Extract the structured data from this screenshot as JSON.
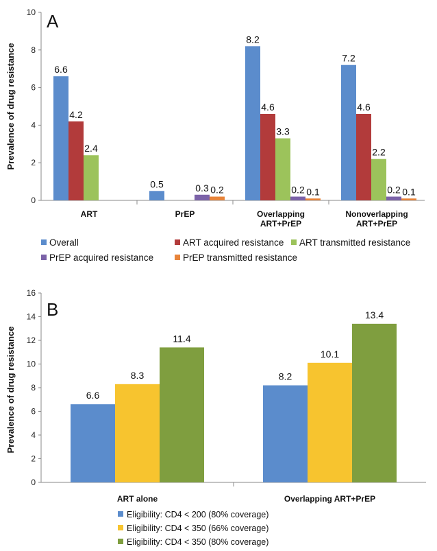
{
  "chart_data": [
    {
      "type": "bar",
      "panel_label": "A",
      "ylabel": "Prevalence of drug resistance",
      "xlabel": "",
      "ylim": [
        0,
        10
      ],
      "yticks": [
        0,
        2,
        4,
        6,
        8,
        10
      ],
      "categories": [
        [
          "ART"
        ],
        [
          "PrEP"
        ],
        [
          "Overlapping",
          "ART+PrEP"
        ],
        [
          "Nonoverlapping",
          "ART+PrEP"
        ]
      ],
      "series": [
        {
          "name": "Overall",
          "color": "#5b8ccc",
          "values": [
            6.6,
            0.5,
            8.2,
            7.2
          ],
          "labels": [
            "6.6",
            "0.5",
            "8.2",
            "7.2"
          ]
        },
        {
          "name": "ART acquired resistance",
          "color": "#b23b3b",
          "values": [
            4.2,
            null,
            4.6,
            4.6
          ],
          "labels": [
            "4.2",
            "",
            "4.6",
            "4.6"
          ]
        },
        {
          "name": "ART transmitted resistance",
          "color": "#9cc35b",
          "values": [
            2.4,
            null,
            3.3,
            2.2
          ],
          "labels": [
            "2.4",
            "",
            "3.3",
            "2.2"
          ]
        },
        {
          "name": "PrEP acquired resistance",
          "color": "#7b62a8",
          "values": [
            null,
            0.3,
            0.2,
            0.2
          ],
          "labels": [
            "",
            "0.3",
            "0.2",
            "0.2"
          ]
        },
        {
          "name": "PrEP transmitted resistance",
          "color": "#e8843a",
          "values": [
            null,
            0.2,
            0.1,
            0.1
          ],
          "labels": [
            "",
            "0.2",
            "0.1",
            "0.1"
          ]
        }
      ],
      "grid": false,
      "legend_position": "bottom"
    },
    {
      "type": "bar",
      "panel_label": "B",
      "ylabel": "Prevalence of drug resistance",
      "xlabel": "",
      "ylim": [
        0,
        16
      ],
      "yticks": [
        0,
        2,
        4,
        6,
        8,
        10,
        12,
        14,
        16
      ],
      "categories": [
        [
          "ART alone"
        ],
        [
          "Overlapping ART+PrEP"
        ]
      ],
      "series": [
        {
          "name": "Eligibility: CD4 < 200 (80% coverage)",
          "color": "#5b8ccc",
          "values": [
            6.6,
            8.2
          ],
          "labels": [
            "6.6",
            "8.2"
          ]
        },
        {
          "name": "Eligibility: CD4 < 350 (66% coverage)",
          "color": "#f7c42f",
          "values": [
            8.3,
            10.1
          ],
          "labels": [
            "8.3",
            "10.1"
          ]
        },
        {
          "name": "Eligibility: CD4 < 350 (80% coverage)",
          "color": "#7f9e3f",
          "values": [
            11.4,
            13.4
          ],
          "labels": [
            "11.4",
            "13.4"
          ]
        }
      ],
      "grid": false,
      "legend_position": "bottom"
    }
  ]
}
